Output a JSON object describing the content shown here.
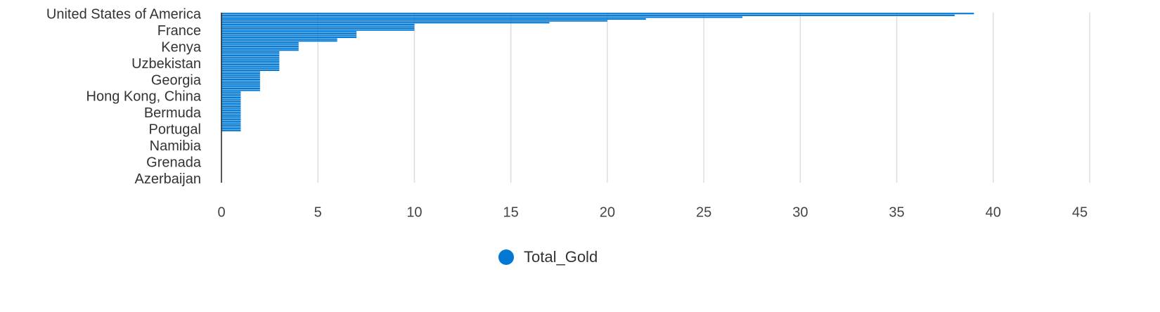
{
  "chart_data": {
    "type": "hbar",
    "categories": [
      "United States of America",
      null,
      null,
      null,
      null,
      null,
      null,
      null,
      null,
      "France",
      null,
      null,
      null,
      null,
      null,
      null,
      null,
      null,
      "Kenya",
      null,
      null,
      null,
      null,
      null,
      null,
      null,
      null,
      "Uzbekistan",
      null,
      null,
      null,
      null,
      null,
      null,
      null,
      null,
      "Georgia",
      null,
      null,
      null,
      null,
      null,
      null,
      null,
      null,
      "Hong Kong, China",
      null,
      null,
      null,
      null,
      null,
      null,
      null,
      null,
      "Bermuda",
      null,
      null,
      null,
      null,
      null,
      null,
      null,
      null,
      "Portugal",
      null,
      null,
      null,
      null,
      null,
      null,
      null,
      null,
      "Namibia",
      null,
      null,
      null,
      null,
      null,
      null,
      null,
      null,
      "Grenada",
      null,
      null,
      null,
      null,
      null,
      null,
      null,
      null,
      "Azerbaijan",
      null,
      null
    ],
    "series": [
      {
        "name": "Total_Gold",
        "color": "#0078d4",
        "values": [
          39,
          38,
          27,
          22,
          20,
          17,
          10,
          10,
          10,
          10,
          7,
          7,
          7,
          7,
          6,
          6,
          4,
          4,
          4,
          4,
          4,
          3,
          3,
          3,
          3,
          3,
          3,
          3,
          3,
          3,
          3,
          3,
          2,
          2,
          2,
          2,
          2,
          2,
          2,
          2,
          2,
          2,
          2,
          1,
          1,
          1,
          1,
          1,
          1,
          1,
          1,
          1,
          1,
          1,
          1,
          1,
          1,
          1,
          1,
          1,
          1,
          1,
          1,
          1,
          1,
          0,
          0,
          0,
          0,
          0,
          0,
          0,
          0,
          0,
          0,
          0,
          0,
          0,
          0,
          0,
          0,
          0,
          0,
          0,
          0,
          0,
          0,
          0,
          0,
          0,
          0,
          0,
          0
        ]
      }
    ],
    "xlim": [
      0,
      45
    ],
    "xticks": [
      0,
      5,
      10,
      15,
      20,
      25,
      30,
      35,
      40,
      45
    ],
    "grid": true,
    "legend": "bottom"
  }
}
